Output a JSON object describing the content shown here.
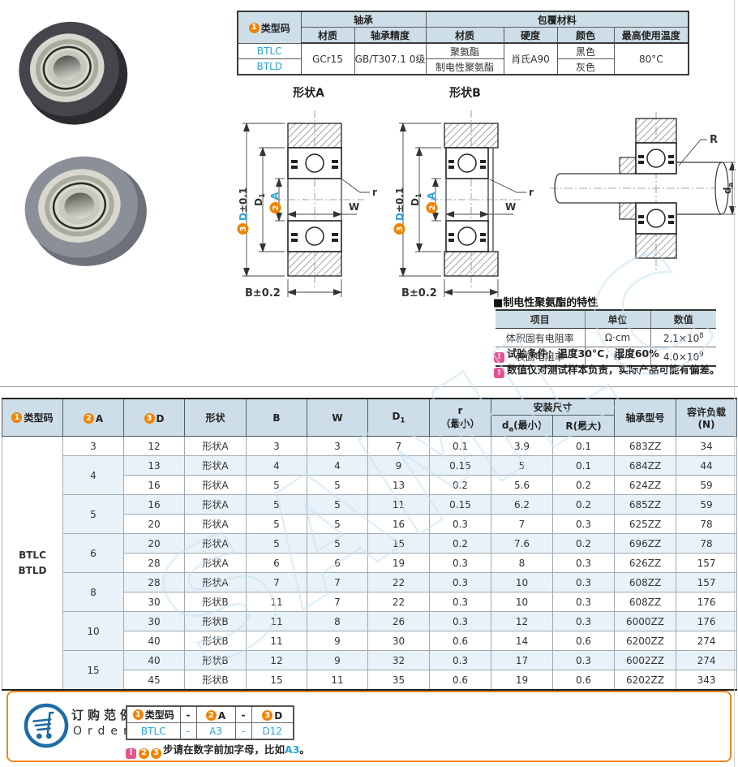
{
  "badges": {
    "b1": "1",
    "b2": "2",
    "b3": "3"
  },
  "watermark": "SAMLC",
  "top_table": {
    "type_code_label": "类型码",
    "group_bearing": "轴承",
    "group_coating": "包覆材料",
    "sub_headers": [
      "材质",
      "轴承精度",
      "材质",
      "硬度",
      "颜色",
      "最高使用温度"
    ],
    "code1": "BTLC",
    "code2": "BTLD",
    "bearing_material": "GCr15",
    "precision": "GB/T307.1 0级",
    "coating1": "聚氨酯",
    "coating2": "制电性聚氨酯",
    "hardness": "肖氏A90",
    "color1": "黑色",
    "color2": "灰色",
    "max_temp": "80°C"
  },
  "diagrams": {
    "shape_a_title": "形状A",
    "shape_b_title": "形状B",
    "dim_d_base": "D",
    "dim_d_tol": "±0.1",
    "dim_d1_base": "D",
    "dim_d1_sub": "1",
    "dim_a": "A",
    "dim_w": "W",
    "dim_r": "r",
    "dim_b": "B±0.2",
    "dim_R": "R",
    "dim_da_base": "d",
    "dim_da_sub": "a"
  },
  "property_table": {
    "marker": "■",
    "title": "制电性聚氨酯的特性",
    "headers": [
      "项目",
      "单位",
      "数值"
    ],
    "rows": [
      {
        "item": "体积固有电阻率",
        "unit": "Ω·cm",
        "value_base": "2.1×10",
        "value_sup": "8"
      },
      {
        "item": "表面电阻率",
        "unit": "Ω",
        "value_base": "4.0×10",
        "value_sup": "9"
      }
    ],
    "note1": "试验条件：温度30°C，湿度60%",
    "note2": "数值仅对测试样本负责，实际产品可能有偏差。"
  },
  "main_table": {
    "headers": {
      "type_code": "类型码",
      "a": "A",
      "d": "D",
      "shape": "形状",
      "b": "B",
      "w": "W",
      "d1_base": "D",
      "d1_sub": "1",
      "r_base": "r",
      "r_min": "（最小）",
      "install": "安装尺寸",
      "da_base": "d",
      "da_sub": "a",
      "da_min": "(最小)",
      "R_base": "R",
      "R_max": "(最大)",
      "model": "轴承型号",
      "load1": "容许负载",
      "load2": "(N)"
    },
    "type_codes": [
      "BTLC",
      "BTLD"
    ],
    "rows": [
      {
        "a": "3",
        "a_span": 1,
        "d": "12",
        "shape": "形状A",
        "b": "3",
        "w": "3",
        "d1": "7",
        "r": "0.1",
        "da": "3.9",
        "R": "0.1",
        "model": "683ZZ",
        "load": "34"
      },
      {
        "a": "4",
        "a_span": 2,
        "d": "13",
        "shape": "形状A",
        "b": "4",
        "w": "4",
        "d1": "9",
        "r": "0.15",
        "da": "5",
        "R": "0.1",
        "model": "684ZZ",
        "load": "44"
      },
      {
        "a": null,
        "a_span": 0,
        "d": "16",
        "shape": "形状A",
        "b": "5",
        "w": "5",
        "d1": "13",
        "r": "0.2",
        "da": "5.6",
        "R": "0.2",
        "model": "624ZZ",
        "load": "59"
      },
      {
        "a": "5",
        "a_span": 2,
        "d": "16",
        "shape": "形状A",
        "b": "5",
        "w": "5",
        "d1": "11",
        "r": "0.15",
        "da": "6.2",
        "R": "0.2",
        "model": "685ZZ",
        "load": "59"
      },
      {
        "a": null,
        "a_span": 0,
        "d": "20",
        "shape": "形状A",
        "b": "5",
        "w": "5",
        "d1": "16",
        "r": "0.3",
        "da": "7",
        "R": "0.3",
        "model": "625ZZ",
        "load": "78"
      },
      {
        "a": "6",
        "a_span": 2,
        "d": "20",
        "shape": "形状A",
        "b": "5",
        "w": "5",
        "d1": "15",
        "r": "0.2",
        "da": "7.6",
        "R": "0.2",
        "model": "696ZZ",
        "load": "78"
      },
      {
        "a": null,
        "a_span": 0,
        "d": "28",
        "shape": "形状A",
        "b": "6",
        "w": "6",
        "d1": "19",
        "r": "0.3",
        "da": "8",
        "R": "0.3",
        "model": "626ZZ",
        "load": "157"
      },
      {
        "a": "8",
        "a_span": 2,
        "d": "28",
        "shape": "形状A",
        "b": "7",
        "w": "7",
        "d1": "22",
        "r": "0.3",
        "da": "10",
        "R": "0.3",
        "model": "608ZZ",
        "load": "157"
      },
      {
        "a": null,
        "a_span": 0,
        "d": "30",
        "shape": "形状B",
        "b": "11",
        "w": "7",
        "d1": "22",
        "r": "0.3",
        "da": "10",
        "R": "0.3",
        "model": "608ZZ",
        "load": "176"
      },
      {
        "a": "10",
        "a_span": 2,
        "d": "30",
        "shape": "形状B",
        "b": "11",
        "w": "8",
        "d1": "26",
        "r": "0.3",
        "da": "12",
        "R": "0.3",
        "model": "6000ZZ",
        "load": "176"
      },
      {
        "a": null,
        "a_span": 0,
        "d": "40",
        "shape": "形状B",
        "b": "11",
        "w": "9",
        "d1": "30",
        "r": "0.6",
        "da": "14",
        "R": "0.6",
        "model": "6200ZZ",
        "load": "274"
      },
      {
        "a": "15",
        "a_span": 2,
        "d": "40",
        "shape": "形状B",
        "b": "12",
        "w": "9",
        "d1": "32",
        "r": "0.3",
        "da": "17",
        "R": "0.3",
        "model": "6002ZZ",
        "load": "274"
      },
      {
        "a": null,
        "a_span": 0,
        "d": "45",
        "shape": "形状B",
        "b": "15",
        "w": "11",
        "d1": "35",
        "r": "0.6",
        "da": "19",
        "R": "0.6",
        "model": "6202ZZ",
        "load": "343"
      }
    ]
  },
  "order": {
    "title_cn": "订购范例",
    "title_en": "Order",
    "h_type": "类型码",
    "h_a": "A",
    "h_d": "D",
    "dash": "-",
    "v_type": "BTLC",
    "v_a": "A3",
    "v_d": "D12",
    "note_text": "步请在数字前加字母，比如",
    "note_link": "A3",
    "note_suffix": "。"
  }
}
